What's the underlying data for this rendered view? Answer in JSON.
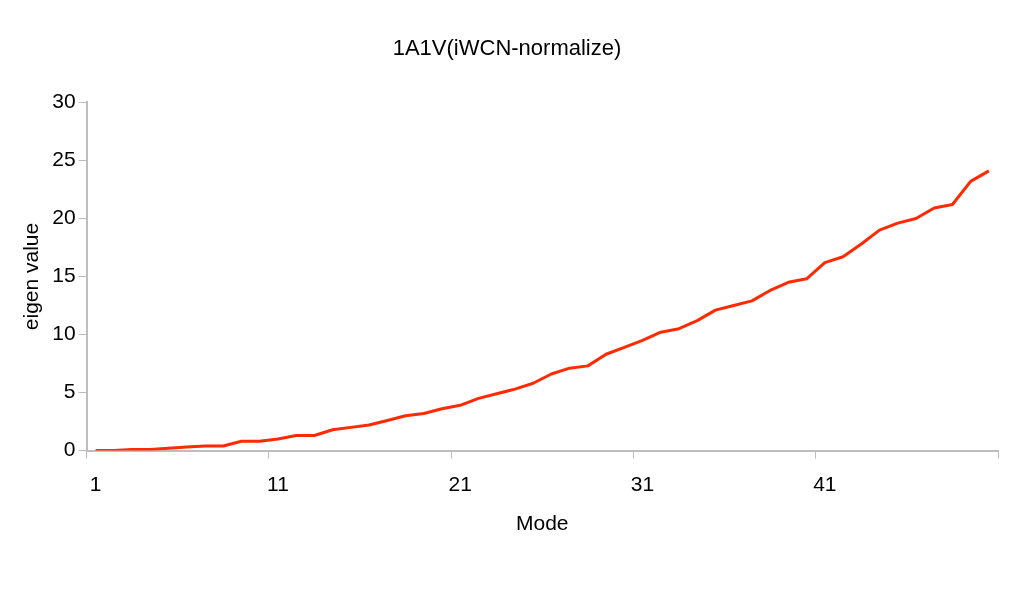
{
  "chart_data": {
    "type": "line",
    "title": "1A1V(iWCN-normalize)",
    "xlabel": "Mode",
    "ylabel": "eigen value",
    "categories": [
      "1",
      null,
      null,
      null,
      null,
      null,
      null,
      null,
      null,
      null,
      "11",
      null,
      null,
      null,
      null,
      null,
      null,
      null,
      null,
      null,
      "21",
      null,
      null,
      null,
      null,
      null,
      null,
      null,
      null,
      null,
      "31",
      null,
      null,
      null,
      null,
      null,
      null,
      null,
      null,
      null,
      "41",
      null,
      null,
      null,
      null,
      null,
      null,
      null,
      null,
      null
    ],
    "series": [
      {
        "color": "#ff2a00",
        "values": [
          0,
          0,
          0.1,
          0.1,
          0.2,
          0.3,
          0.4,
          0.4,
          0.8,
          0.8,
          1.0,
          1.3,
          1.3,
          1.8,
          2.0,
          2.2,
          2.6,
          3.0,
          3.2,
          3.6,
          3.9,
          4.5,
          4.9,
          5.3,
          5.8,
          6.6,
          7.1,
          7.3,
          8.3,
          8.9,
          9.5,
          10.2,
          10.5,
          11.2,
          12.1,
          12.5,
          12.9,
          13.8,
          14.5,
          14.8,
          16.2,
          16.7,
          17.8,
          19.0,
          19.6,
          20.0,
          20.9,
          21.2,
          23.2,
          24.1
        ]
      }
    ],
    "ylim": [
      0,
      30
    ],
    "yticks": [
      0,
      5,
      10,
      15,
      20,
      25,
      30
    ],
    "legend": false,
    "marker": "none",
    "line_style": "solid"
  }
}
